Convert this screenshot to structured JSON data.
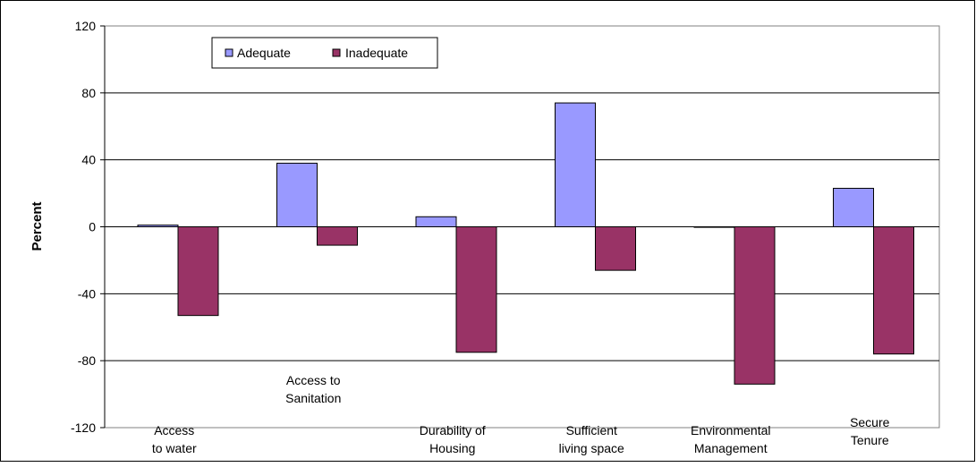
{
  "chart_data": {
    "type": "bar",
    "ylabel": "Percent",
    "ylim": [
      -120,
      120
    ],
    "yticks": [
      "120",
      "80",
      "40",
      "0",
      "-40",
      "-80",
      "-120"
    ],
    "ytick_values": [
      120,
      80,
      40,
      0,
      -40,
      -80,
      -120
    ],
    "grid": "horizontal",
    "legend_position": "top-left",
    "categories": [
      [
        "Access",
        "to water"
      ],
      [
        "Access to",
        "Sanitation"
      ],
      [
        "Durability of",
        "Housing"
      ],
      [
        "Sufficient",
        "living space"
      ],
      [
        "Environmental",
        "Management"
      ],
      [
        "Secure",
        "Tenure"
      ]
    ],
    "series": [
      {
        "name": "Adequate",
        "color": "#9999ff",
        "values": [
          1,
          38,
          6,
          74,
          0,
          23
        ]
      },
      {
        "name": "Inadequate",
        "color": "#993366",
        "values": [
          -53,
          -11,
          -75,
          -26,
          -94,
          -76
        ]
      }
    ]
  }
}
